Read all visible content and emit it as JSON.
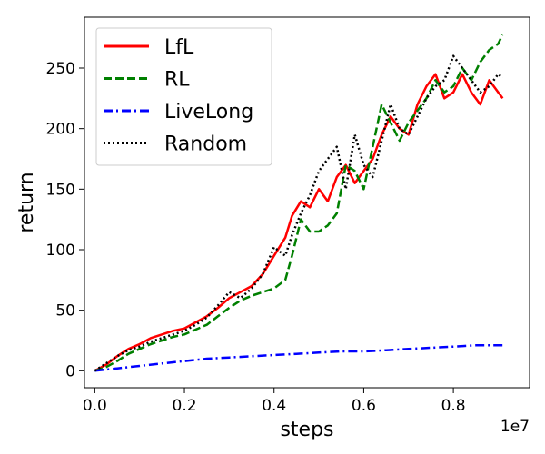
{
  "chart_data": {
    "type": "line",
    "title": "",
    "xlabel": "steps",
    "ylabel": "return",
    "x_offset_label": "1e7",
    "x_scale": 10000000,
    "xlim": [
      -0.23,
      9.7
    ],
    "ylim": [
      -14,
      292
    ],
    "x_ticks": [
      0,
      2,
      4,
      6,
      8
    ],
    "x_tick_labels": [
      "0.0",
      "0.2",
      "0.4",
      "0.6",
      "0.8"
    ],
    "y_ticks": [
      0,
      50,
      100,
      150,
      200,
      250
    ],
    "y_tick_labels": [
      "0",
      "50",
      "100",
      "150",
      "200",
      "250"
    ],
    "grid": false,
    "legend_position": "top-left",
    "series": [
      {
        "name": "LfL",
        "color": "#ff0000",
        "dash": "solid",
        "x": [
          0.0,
          0.25,
          0.5,
          0.75,
          1.0,
          1.25,
          1.5,
          1.75,
          2.0,
          2.25,
          2.5,
          2.75,
          3.0,
          3.25,
          3.5,
          3.75,
          4.0,
          4.25,
          4.4,
          4.6,
          4.8,
          5.0,
          5.2,
          5.4,
          5.6,
          5.8,
          6.0,
          6.2,
          6.4,
          6.6,
          6.8,
          7.0,
          7.2,
          7.4,
          7.6,
          7.8,
          8.0,
          8.2,
          8.4,
          8.6,
          8.8,
          9.0,
          9.1
        ],
        "y": [
          0,
          5,
          12,
          18,
          22,
          27,
          30,
          33,
          35,
          40,
          45,
          52,
          60,
          65,
          70,
          80,
          95,
          110,
          128,
          140,
          135,
          150,
          140,
          160,
          170,
          155,
          165,
          175,
          195,
          210,
          200,
          195,
          220,
          235,
          245,
          225,
          230,
          245,
          230,
          220,
          240,
          230,
          225
        ]
      },
      {
        "name": "RL",
        "color": "#008000",
        "dash": "dashed",
        "x": [
          0.0,
          0.25,
          0.5,
          0.75,
          1.0,
          1.25,
          1.5,
          1.75,
          2.0,
          2.25,
          2.5,
          2.75,
          3.0,
          3.25,
          3.5,
          3.75,
          4.0,
          4.25,
          4.4,
          4.6,
          4.8,
          5.0,
          5.2,
          5.4,
          5.6,
          5.8,
          6.0,
          6.2,
          6.4,
          6.6,
          6.8,
          7.0,
          7.2,
          7.4,
          7.6,
          7.8,
          8.0,
          8.2,
          8.4,
          8.6,
          8.8,
          9.0,
          9.1
        ],
        "y": [
          0,
          3,
          8,
          14,
          18,
          22,
          25,
          28,
          30,
          34,
          38,
          45,
          52,
          58,
          62,
          65,
          68,
          75,
          95,
          125,
          115,
          115,
          120,
          130,
          170,
          165,
          150,
          185,
          220,
          205,
          190,
          205,
          215,
          225,
          240,
          230,
          235,
          250,
          240,
          255,
          265,
          270,
          278
        ]
      },
      {
        "name": "LiveLong",
        "color": "#0000ff",
        "dash": "dashdot",
        "x": [
          0.0,
          0.5,
          1.0,
          1.5,
          2.0,
          2.5,
          3.0,
          3.5,
          4.0,
          4.5,
          5.0,
          5.5,
          6.0,
          6.5,
          7.0,
          7.5,
          8.0,
          8.5,
          9.1
        ],
        "y": [
          0,
          2,
          4,
          6,
          8,
          10,
          11,
          12,
          13,
          14,
          15,
          16,
          16,
          17,
          18,
          19,
          20,
          21,
          21
        ]
      },
      {
        "name": "Random",
        "color": "#000000",
        "dash": "dotted",
        "x": [
          0.0,
          0.25,
          0.5,
          0.75,
          1.0,
          1.25,
          1.5,
          1.75,
          2.0,
          2.25,
          2.5,
          2.75,
          3.0,
          3.25,
          3.5,
          3.75,
          4.0,
          4.25,
          4.4,
          4.6,
          4.8,
          5.0,
          5.2,
          5.4,
          5.6,
          5.8,
          6.0,
          6.2,
          6.4,
          6.6,
          6.8,
          7.0,
          7.2,
          7.4,
          7.6,
          7.8,
          8.0,
          8.2,
          8.4,
          8.6,
          8.8,
          9.0,
          9.1
        ],
        "y": [
          0,
          6,
          12,
          17,
          20,
          24,
          27,
          30,
          33,
          38,
          44,
          54,
          65,
          60,
          68,
          80,
          102,
          95,
          112,
          130,
          145,
          165,
          175,
          185,
          150,
          195,
          170,
          160,
          190,
          220,
          200,
          195,
          210,
          225,
          235,
          240,
          260,
          250,
          240,
          230,
          235,
          245,
          242
        ]
      }
    ]
  }
}
